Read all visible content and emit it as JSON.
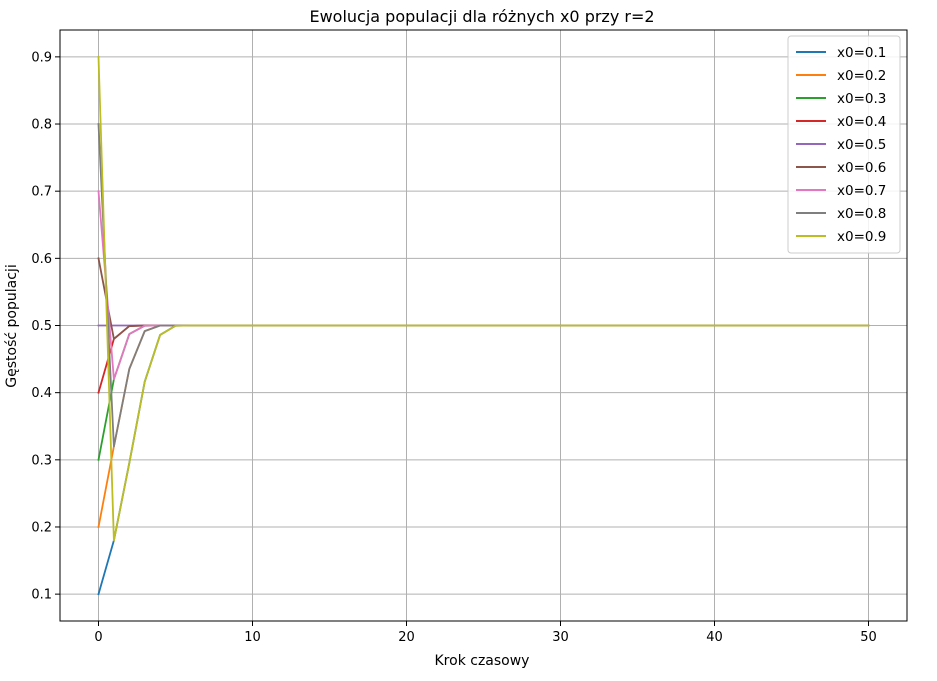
{
  "chart_data": {
    "type": "line",
    "title": "Ewolucja populacji dla różnych x0 przy r=2",
    "xlabel": "Krok czasowy",
    "ylabel": "Gęstość populacji",
    "xlim": [
      -2.5,
      52.5
    ],
    "ylim": [
      0.06,
      0.94
    ],
    "xticks": [
      0,
      10,
      20,
      30,
      40,
      50
    ],
    "yticks": [
      0.1,
      0.2,
      0.3,
      0.4,
      0.5,
      0.6,
      0.7,
      0.8,
      0.9
    ],
    "xtick_labels": [
      "0",
      "10",
      "20",
      "30",
      "40",
      "50"
    ],
    "ytick_labels": [
      "0.1",
      "0.2",
      "0.3",
      "0.4",
      "0.5",
      "0.6",
      "0.7",
      "0.8",
      "0.9"
    ],
    "grid": true,
    "legend_position": "upper-right",
    "x_last": 50,
    "series": [
      {
        "name": "x0=0.1",
        "color": "#1f77b4",
        "values": [
          0.1,
          0.18,
          0.2952,
          0.41611,
          0.48592,
          0.4996,
          0.5
        ]
      },
      {
        "name": "x0=0.2",
        "color": "#ff7f0e",
        "values": [
          0.2,
          0.32,
          0.4352,
          0.4916,
          0.49999,
          0.5
        ]
      },
      {
        "name": "x0=0.3",
        "color": "#2ca02c",
        "values": [
          0.3,
          0.42,
          0.4872,
          0.49967,
          0.5
        ]
      },
      {
        "name": "x0=0.4",
        "color": "#d62728",
        "values": [
          0.4,
          0.48,
          0.4992,
          0.5
        ]
      },
      {
        "name": "x0=0.5",
        "color": "#9467bd",
        "values": [
          0.5,
          0.5
        ]
      },
      {
        "name": "x0=0.6",
        "color": "#8c564b",
        "values": [
          0.6,
          0.48,
          0.4992,
          0.5
        ]
      },
      {
        "name": "x0=0.7",
        "color": "#e377c2",
        "values": [
          0.7,
          0.42,
          0.4872,
          0.49967,
          0.5
        ]
      },
      {
        "name": "x0=0.8",
        "color": "#7f7f7f",
        "values": [
          0.8,
          0.32,
          0.4352,
          0.4916,
          0.49999,
          0.5
        ]
      },
      {
        "name": "x0=0.9",
        "color": "#bcbd22",
        "values": [
          0.9,
          0.18,
          0.2952,
          0.41611,
          0.48592,
          0.4996,
          0.5
        ]
      }
    ]
  }
}
